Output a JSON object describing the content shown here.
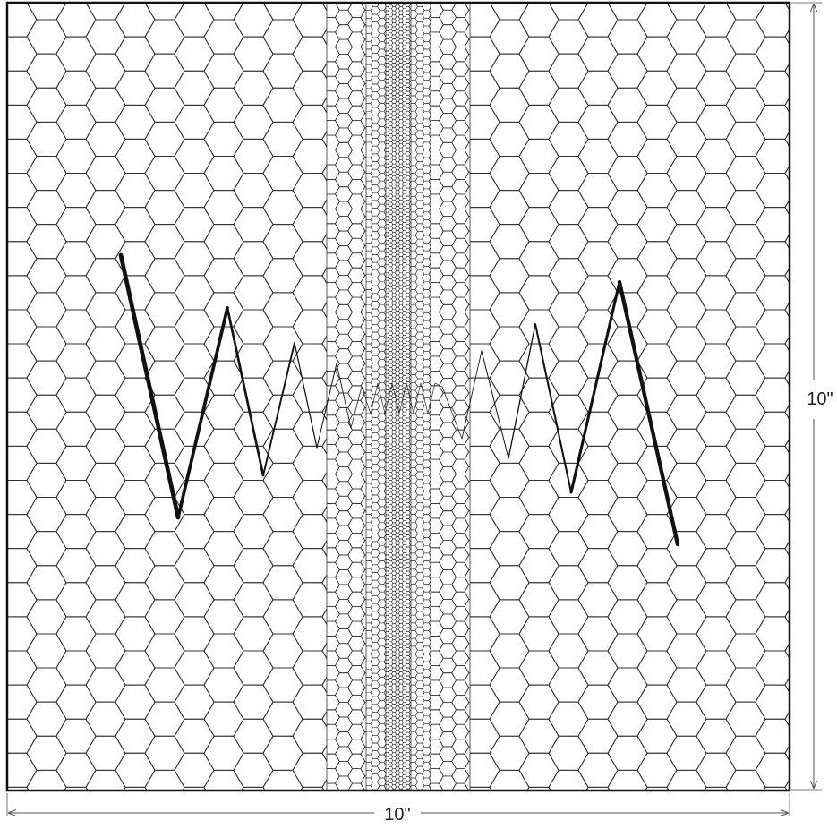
{
  "figure": {
    "width_label": "10\"",
    "height_label": "10\""
  },
  "colors": {
    "background": "#ffffff",
    "mesh": "#333333",
    "border": "#111111",
    "zigzag": "#111111",
    "dimension": "#555555"
  }
}
